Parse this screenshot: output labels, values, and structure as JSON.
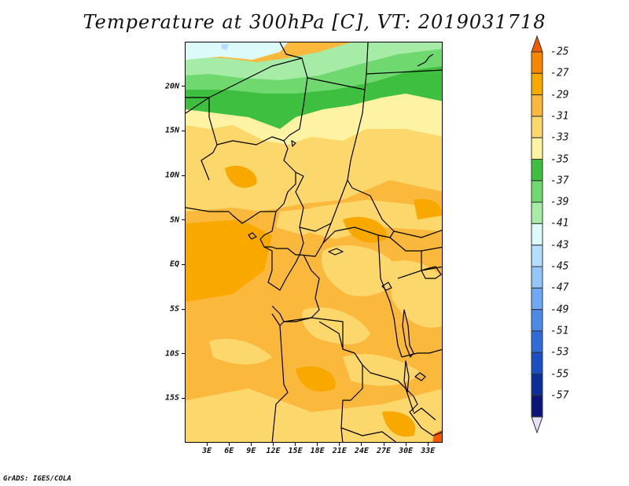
{
  "title": "Temperature at 300hPa [C], VT: 2019031718",
  "credit": "GrADS: IGES/COLA",
  "chart_data": {
    "type": "heatmap",
    "title": "Temperature at 300hPa [C], VT: 2019031718",
    "variable": "Temperature",
    "level": "300hPa",
    "units": "C",
    "valid_time": "2019031718",
    "lon_range": [
      0,
      35
    ],
    "lat_range": [
      -20,
      25
    ],
    "x_ticks": [
      "3E",
      "6E",
      "9E",
      "12E",
      "15E",
      "18E",
      "21E",
      "24E",
      "27E",
      "30E",
      "33E"
    ],
    "y_ticks": [
      "20N",
      "15N",
      "10N",
      "5N",
      "EQ",
      "5S",
      "10S",
      "15S"
    ],
    "colorbar": {
      "labels": [
        "-25",
        "-27",
        "-29",
        "-31",
        "-33",
        "-35",
        "-37",
        "-39",
        "-41",
        "-43",
        "-45",
        "-47",
        "-49",
        "-51",
        "-53",
        "-55",
        "-57"
      ],
      "colors": [
        "#f55a00",
        "#f78600",
        "#f9a800",
        "#fab83c",
        "#fcd86c",
        "#fdf3a3",
        "#3fbf3f",
        "#6fd86f",
        "#a6eba6",
        "#ddfafa",
        "#b4defe",
        "#94c6fb",
        "#6fa8f5",
        "#4c8ae8",
        "#2f6cd8",
        "#1a4fc4",
        "#0b2f99",
        "#0a1577",
        "#e4e2fa"
      ]
    },
    "colors": {
      "c27": "#f9a800",
      "c29": "#fab83c",
      "c31": "#fcd86c",
      "c33": "#fdf3a3",
      "c35": "#3fbf3f",
      "c37": "#6fd86f",
      "c39": "#a6eba6",
      "c41": "#ddfafa",
      "c43": "#b4defe",
      "c25": "#f55a00"
    }
  }
}
